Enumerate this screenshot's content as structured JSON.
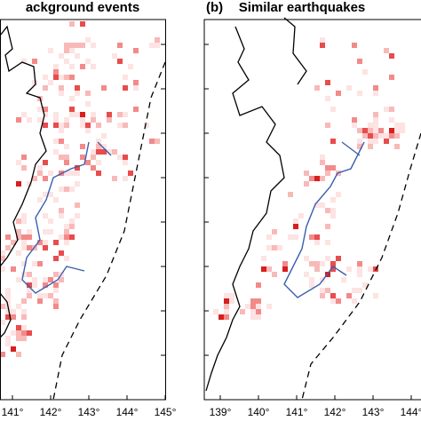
{
  "panels": [
    {
      "title": "ackground events",
      "x_tick_labels": [
        "141°",
        "142°",
        "143°",
        "144°",
        "145°"
      ]
    },
    {
      "label": "(b)",
      "title": "Similar earthquakes",
      "x_tick_labels": [
        "139°",
        "140°",
        "141°",
        "142°",
        "143°",
        "144°",
        "1"
      ]
    }
  ]
}
